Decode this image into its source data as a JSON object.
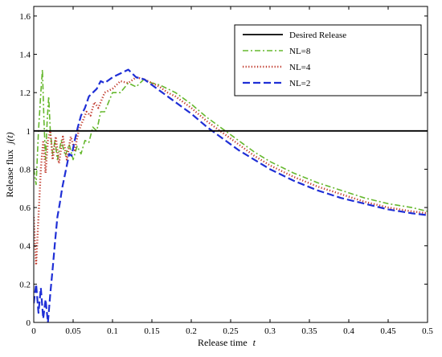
{
  "chart_data": {
    "type": "line",
    "title": "",
    "xlabel": "Release time",
    "xlabel_var": "t",
    "ylabel": "Release flux",
    "ylabel_var": "j(t)",
    "xlim": [
      0,
      0.5
    ],
    "ylim": [
      0,
      1.65
    ],
    "xticks": [
      0,
      0.05,
      0.1,
      0.15,
      0.2,
      0.25,
      0.3,
      0.35,
      0.4,
      0.45,
      0.5
    ],
    "xtick_labels": [
      "0",
      "0.05",
      "0.1",
      "0.15",
      "0.2",
      "0.25",
      "0.3",
      "0.35",
      "0.4",
      "0.45",
      "0.5"
    ],
    "yticks": [
      0,
      0.2,
      0.4,
      0.6,
      0.8,
      1,
      1.2,
      1.4,
      1.6
    ],
    "ytick_labels": [
      "0",
      "0.2",
      "0.4",
      "0.6",
      "0.8",
      "1",
      "1.2",
      "1.4",
      "1.6"
    ],
    "grid": false,
    "legend_position": "top-right",
    "series": [
      {
        "name": "Desired Release",
        "color": "#000000",
        "dash": "solid",
        "points": [
          [
            0,
            1
          ],
          [
            0.5,
            1
          ]
        ]
      },
      {
        "name": "NL=8",
        "color": "#66b82e",
        "dash": "dashdot",
        "points": [
          [
            0,
            0.8
          ],
          [
            0.003,
            0.72
          ],
          [
            0.006,
            1.0
          ],
          [
            0.009,
            1.2
          ],
          [
            0.011,
            1.32
          ],
          [
            0.013,
            1.05
          ],
          [
            0.015,
            0.85
          ],
          [
            0.017,
            1.05
          ],
          [
            0.019,
            1.18
          ],
          [
            0.021,
            1.0
          ],
          [
            0.024,
            0.88
          ],
          [
            0.027,
            0.95
          ],
          [
            0.03,
            0.85
          ],
          [
            0.035,
            0.95
          ],
          [
            0.04,
            0.87
          ],
          [
            0.045,
            0.93
          ],
          [
            0.05,
            0.85
          ],
          [
            0.055,
            0.92
          ],
          [
            0.06,
            0.88
          ],
          [
            0.065,
            0.95
          ],
          [
            0.07,
            0.94
          ],
          [
            0.075,
            1.02
          ],
          [
            0.08,
            1.0
          ],
          [
            0.085,
            1.1
          ],
          [
            0.09,
            1.1
          ],
          [
            0.1,
            1.2
          ],
          [
            0.11,
            1.2
          ],
          [
            0.12,
            1.25
          ],
          [
            0.13,
            1.23
          ],
          [
            0.14,
            1.27
          ],
          [
            0.15,
            1.25
          ],
          [
            0.16,
            1.24
          ],
          [
            0.17,
            1.22
          ],
          [
            0.18,
            1.2
          ],
          [
            0.19,
            1.17
          ],
          [
            0.2,
            1.14
          ],
          [
            0.22,
            1.07
          ],
          [
            0.24,
            1.01
          ],
          [
            0.26,
            0.95
          ],
          [
            0.28,
            0.89
          ],
          [
            0.3,
            0.84
          ],
          [
            0.33,
            0.78
          ],
          [
            0.36,
            0.73
          ],
          [
            0.39,
            0.69
          ],
          [
            0.42,
            0.65
          ],
          [
            0.45,
            0.62
          ],
          [
            0.48,
            0.6
          ],
          [
            0.5,
            0.58
          ]
        ]
      },
      {
        "name": "NL=4",
        "color": "#c0392b",
        "dash": "dotted",
        "points": [
          [
            0,
            0.55
          ],
          [
            0.003,
            0.3
          ],
          [
            0.006,
            0.55
          ],
          [
            0.009,
            0.8
          ],
          [
            0.012,
            0.95
          ],
          [
            0.015,
            0.78
          ],
          [
            0.018,
            0.95
          ],
          [
            0.021,
            1.0
          ],
          [
            0.024,
            0.85
          ],
          [
            0.028,
            0.97
          ],
          [
            0.032,
            0.83
          ],
          [
            0.037,
            0.97
          ],
          [
            0.042,
            0.85
          ],
          [
            0.047,
            0.97
          ],
          [
            0.052,
            0.9
          ],
          [
            0.057,
            1.0
          ],
          [
            0.062,
            1.05
          ],
          [
            0.067,
            1.1
          ],
          [
            0.072,
            1.08
          ],
          [
            0.077,
            1.15
          ],
          [
            0.082,
            1.12
          ],
          [
            0.09,
            1.2
          ],
          [
            0.1,
            1.22
          ],
          [
            0.11,
            1.26
          ],
          [
            0.12,
            1.25
          ],
          [
            0.13,
            1.28
          ],
          [
            0.14,
            1.27
          ],
          [
            0.15,
            1.25
          ],
          [
            0.16,
            1.23
          ],
          [
            0.17,
            1.2
          ],
          [
            0.18,
            1.18
          ],
          [
            0.19,
            1.15
          ],
          [
            0.2,
            1.12
          ],
          [
            0.22,
            1.05
          ],
          [
            0.24,
            0.99
          ],
          [
            0.26,
            0.93
          ],
          [
            0.28,
            0.87
          ],
          [
            0.3,
            0.82
          ],
          [
            0.33,
            0.76
          ],
          [
            0.36,
            0.71
          ],
          [
            0.39,
            0.67
          ],
          [
            0.42,
            0.63
          ],
          [
            0.45,
            0.6
          ],
          [
            0.48,
            0.58
          ],
          [
            0.5,
            0.57
          ]
        ]
      },
      {
        "name": "NL=2",
        "color": "#1f2fd6",
        "dash": "dashed",
        "points": [
          [
            0,
            0.1
          ],
          [
            0.003,
            0.2
          ],
          [
            0.006,
            0.05
          ],
          [
            0.009,
            0.18
          ],
          [
            0.012,
            0.02
          ],
          [
            0.015,
            0.12
          ],
          [
            0.018,
            0.0
          ],
          [
            0.021,
            0.15
          ],
          [
            0.024,
            0.28
          ],
          [
            0.027,
            0.42
          ],
          [
            0.03,
            0.55
          ],
          [
            0.033,
            0.62
          ],
          [
            0.036,
            0.7
          ],
          [
            0.039,
            0.76
          ],
          [
            0.042,
            0.82
          ],
          [
            0.045,
            0.88
          ],
          [
            0.048,
            0.87
          ],
          [
            0.052,
            0.95
          ],
          [
            0.056,
            1.02
          ],
          [
            0.06,
            1.08
          ],
          [
            0.065,
            1.12
          ],
          [
            0.07,
            1.18
          ],
          [
            0.075,
            1.2
          ],
          [
            0.08,
            1.22
          ],
          [
            0.085,
            1.26
          ],
          [
            0.09,
            1.25
          ],
          [
            0.1,
            1.28
          ],
          [
            0.11,
            1.3
          ],
          [
            0.12,
            1.32
          ],
          [
            0.13,
            1.28
          ],
          [
            0.14,
            1.27
          ],
          [
            0.15,
            1.24
          ],
          [
            0.16,
            1.21
          ],
          [
            0.17,
            1.18
          ],
          [
            0.18,
            1.15
          ],
          [
            0.19,
            1.12
          ],
          [
            0.2,
            1.09
          ],
          [
            0.22,
            1.02
          ],
          [
            0.24,
            0.96
          ],
          [
            0.26,
            0.9
          ],
          [
            0.28,
            0.85
          ],
          [
            0.3,
            0.8
          ],
          [
            0.33,
            0.74
          ],
          [
            0.36,
            0.69
          ],
          [
            0.39,
            0.65
          ],
          [
            0.42,
            0.62
          ],
          [
            0.45,
            0.59
          ],
          [
            0.48,
            0.57
          ],
          [
            0.5,
            0.56
          ]
        ]
      }
    ]
  }
}
